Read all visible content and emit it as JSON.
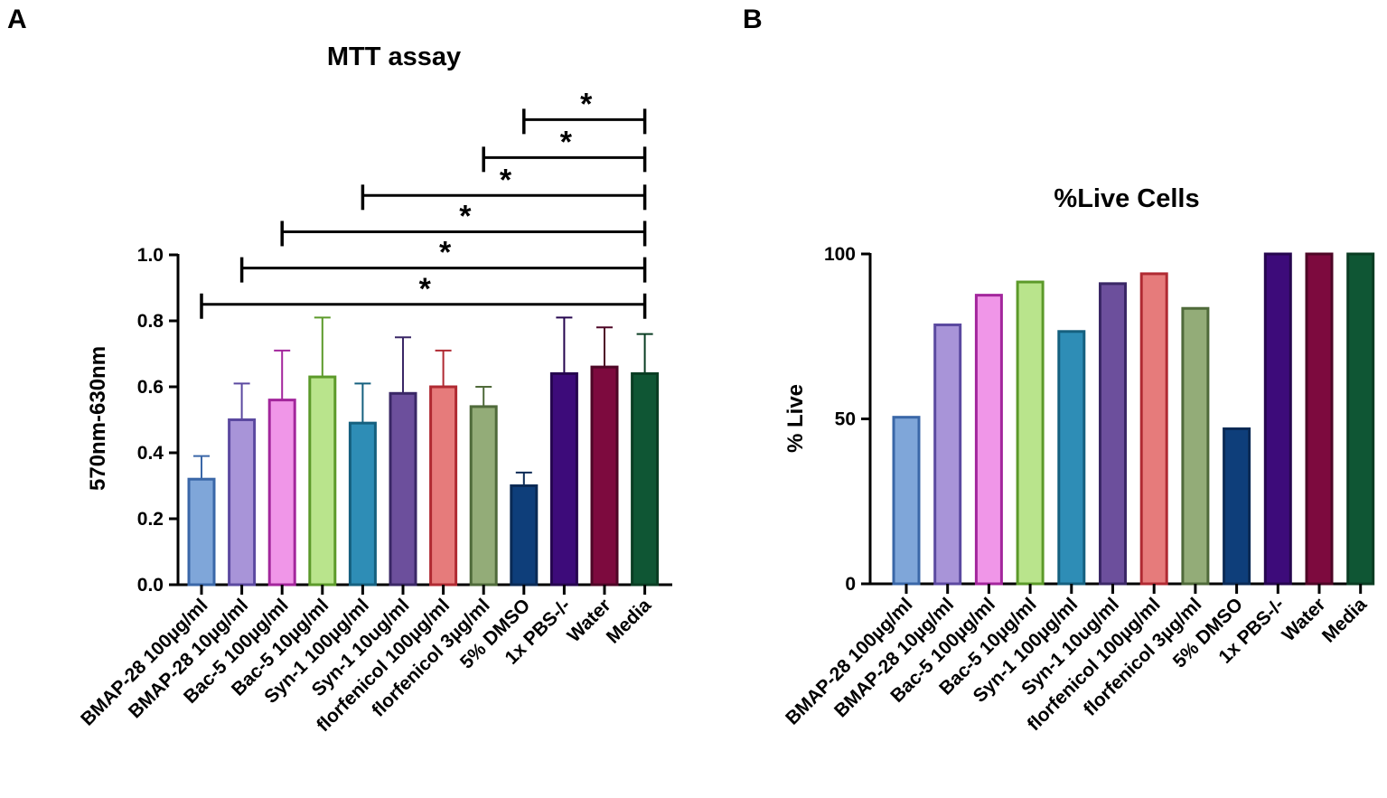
{
  "categories": [
    "BMAP-28 100µg/ml",
    "BMAP-28 10µg/ml",
    "Bac-5 100µg/ml",
    "Bac-5 10µg/ml",
    "Syn-1 100µg/ml",
    "Syn-1 10ug/ml",
    "florfenicol 100µg/ml",
    "florfenicol 3µg/ml",
    "5% DMSO",
    "1x PBS-/-",
    "Water",
    "Media"
  ],
  "colors": {
    "fill": [
      "#7fa6d9",
      "#a894d8",
      "#f096e8",
      "#b9e48c",
      "#2e8db6",
      "#6c4f9c",
      "#e67b7b",
      "#93ac78",
      "#0e3e7a",
      "#3d0b7a",
      "#7d0a3e",
      "#0f5634"
    ],
    "stroke": [
      "#3a67a8",
      "#5b49a0",
      "#a3269c",
      "#5c9a2a",
      "#15607f",
      "#3a2766",
      "#b02a32",
      "#4f6a3a",
      "#0a2a55",
      "#26064f",
      "#4e0626",
      "#0a3d23"
    ]
  },
  "panel_a": {
    "letter": "A",
    "significance_symbol": "*",
    "chart_data": {
      "type": "bar",
      "title": "MTT assay",
      "xlabel": "",
      "ylabel": "570nm-630nm",
      "ylim": [
        0,
        1.0
      ],
      "yticks": [
        "0.0",
        "0.2",
        "0.4",
        "0.6",
        "0.8",
        "1.0"
      ],
      "categories": [
        "BMAP-28 100µg/ml",
        "BMAP-28 10µg/ml",
        "Bac-5 100µg/ml",
        "Bac-5 10µg/ml",
        "Syn-1 100µg/ml",
        "Syn-1 10ug/ml",
        "florfenicol 100µg/ml",
        "florfenicol 3µg/ml",
        "5% DMSO",
        "1x PBS-/-",
        "Water",
        "Media"
      ],
      "values": [
        0.32,
        0.5,
        0.56,
        0.63,
        0.49,
        0.58,
        0.6,
        0.54,
        0.3,
        0.64,
        0.66,
        0.64
      ],
      "errors": [
        0.07,
        0.11,
        0.15,
        0.18,
        0.12,
        0.17,
        0.11,
        0.06,
        0.04,
        0.17,
        0.12,
        0.12
      ],
      "significance": [
        {
          "from": 0,
          "to": 11,
          "label": "*",
          "level": 0.85
        },
        {
          "from": 1,
          "to": 11,
          "label": "*",
          "level": 0.96
        },
        {
          "from": 2,
          "to": 11,
          "label": "*",
          "level": 1.07
        },
        {
          "from": 4,
          "to": 11,
          "label": "*",
          "level": 1.18
        },
        {
          "from": 7,
          "to": 11,
          "label": "*",
          "level": 1.295
        },
        {
          "from": 8,
          "to": 11,
          "label": "*",
          "level": 1.41
        }
      ]
    }
  },
  "panel_b": {
    "letter": "B",
    "chart_data": {
      "type": "bar",
      "title": "%Live Cells",
      "xlabel": "",
      "ylabel": "% Live",
      "ylim": [
        0,
        100
      ],
      "yticks": [
        "0",
        "50",
        "100"
      ],
      "categories": [
        "BMAP-28 100µg/ml",
        "BMAP-28 10µg/ml",
        "Bac-5 100µg/ml",
        "Bac-5 10µg/ml",
        "Syn-1 100µg/ml",
        "Syn-1 10ug/ml",
        "florfenicol 100µg/ml",
        "florfenicol 3µg/ml",
        "5% DMSO",
        "1x PBS-/-",
        "Water",
        "Media"
      ],
      "values": [
        50.5,
        78.5,
        87.5,
        91.5,
        76.5,
        91,
        94,
        83.5,
        47,
        100,
        100,
        100
      ]
    }
  }
}
